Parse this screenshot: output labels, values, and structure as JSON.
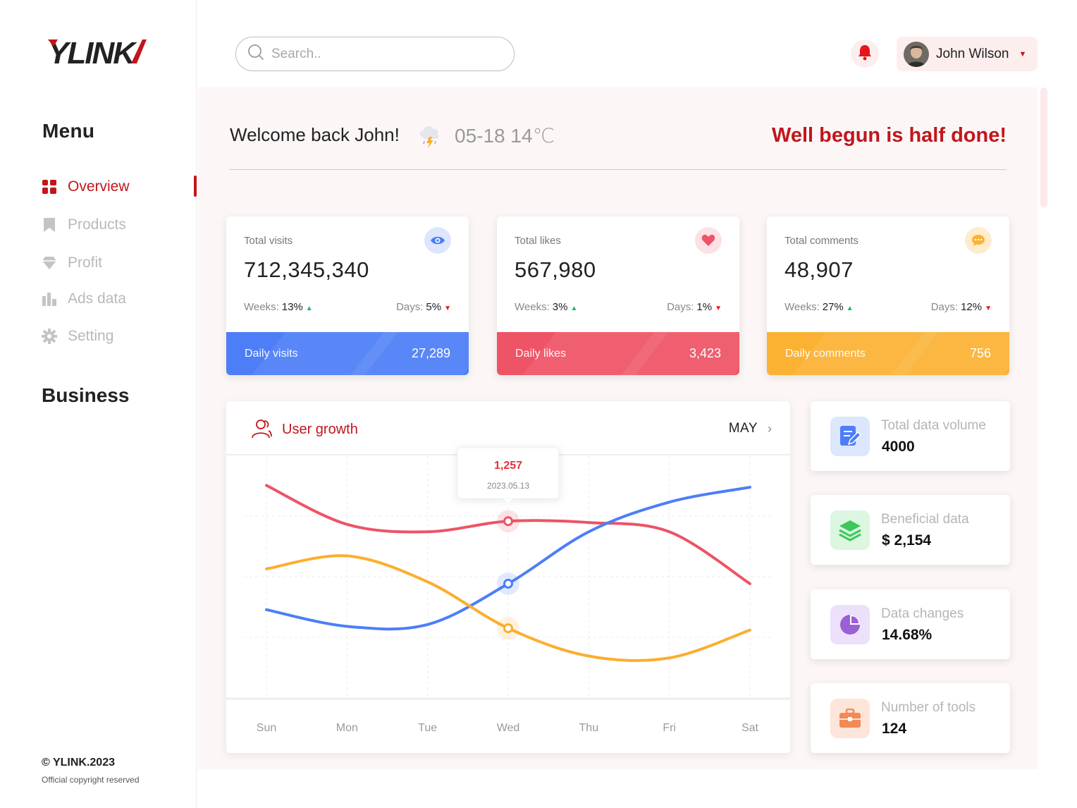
{
  "brand": {
    "logo_text": "YLINK",
    "accent": "#c0161c"
  },
  "sidebar": {
    "menu_heading": "Menu",
    "items": [
      {
        "label": "Overview",
        "icon": "grid-icon",
        "active": true
      },
      {
        "label": "Products",
        "icon": "bookmark-icon",
        "active": false
      },
      {
        "label": "Profit",
        "icon": "diamond-icon",
        "active": false
      },
      {
        "label": "Ads data",
        "icon": "bar-chart-icon",
        "active": false
      },
      {
        "label": "Setting",
        "icon": "gear-icon",
        "active": false
      }
    ],
    "business_heading": "Business",
    "copyright": "© YLINK.2023",
    "copyright_sub": "Official copyright reserved"
  },
  "header": {
    "search_placeholder": "Search..",
    "user_name": "John Wilson"
  },
  "welcome": {
    "greeting": "Welcome back John!",
    "weather": "05-18 14℃",
    "weather_icon": "thunderstorm-cloud-icon",
    "motto": "Well begun is half done!"
  },
  "stats": [
    {
      "title": "Total visits",
      "value": "712,345,340",
      "weeks_label": "Weeks:",
      "weeks": "13%",
      "days_label": "Days:",
      "days": "5%",
      "band_label": "Daily visits",
      "band_value": "27,289",
      "color": "#4d7ef7",
      "icon": "eye-icon"
    },
    {
      "title": "Total likes",
      "value": "567,980",
      "weeks_label": "Weeks:",
      "weeks": "3%",
      "days_label": "Days:",
      "days": "1%",
      "band_label": "Daily likes",
      "band_value": "3,423",
      "color": "#ee5366",
      "icon": "heart-icon"
    },
    {
      "title": "Total comments",
      "value": "48,907",
      "weeks_label": "Weeks:",
      "weeks": "27%",
      "days_label": "Days:",
      "days": "12%",
      "band_label": "Daily comments",
      "band_value": "756",
      "color": "#fbb233",
      "icon": "comment-icon"
    }
  ],
  "chart": {
    "title": "User growth",
    "month": "MAY",
    "tooltip_value": "1,257",
    "tooltip_date": "2023.05.13"
  },
  "chart_data": {
    "type": "line",
    "categories": [
      "Sun",
      "Mon",
      "Tue",
      "Wed",
      "Thu",
      "Fri",
      "Sat"
    ],
    "series": [
      {
        "color": "#ec5466",
        "values": [
          1450,
          1240,
          1200,
          1257,
          1250,
          1200,
          920
        ]
      },
      {
        "color": "#4d7ef7",
        "values": [
          780,
          690,
          700,
          920,
          1200,
          1360,
          1440
        ]
      },
      {
        "color": "#fbae2e",
        "values": [
          1000,
          1070,
          930,
          680,
          530,
          520,
          670
        ]
      }
    ],
    "highlight": {
      "category": "Wed",
      "value": 1257
    },
    "ylim": [
      300,
      1600
    ],
    "grid": true
  },
  "info_cards": [
    {
      "label": "Total data volume",
      "value": "4000",
      "icon": "edit-document-icon",
      "color": "#4d7ef7",
      "bg": "#dce6fd"
    },
    {
      "label": "Beneficial data",
      "value": "$ 2,154",
      "icon": "layers-icon",
      "color": "#3cc85a",
      "bg": "#dcf6e1"
    },
    {
      "label": "Data changes",
      "value": "14.68%",
      "icon": "pie-chart-icon",
      "color": "#9b5fd6",
      "bg": "#ece0fa"
    },
    {
      "label": "Number of tools",
      "value": "124",
      "icon": "briefcase-icon",
      "color": "#f28a55",
      "bg": "#fde5d9"
    }
  ]
}
